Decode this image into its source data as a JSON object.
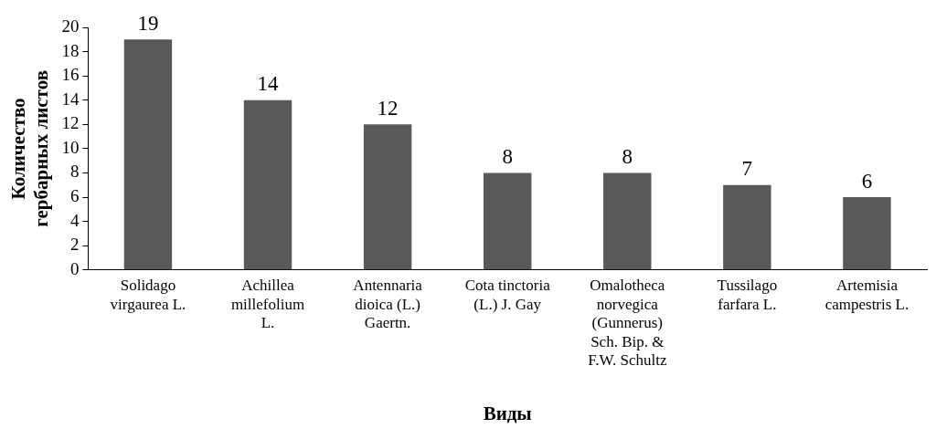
{
  "chart_data": {
    "type": "bar",
    "xlabel": "Виды",
    "ylabel": "Количество гербарных листов",
    "categories": [
      "Solidago virgaurea L.",
      "Achillea millefolium L.",
      "Antennaria dioica (L.) Gaertn.",
      "Cota tinctoria (L.) J. Gay",
      "Omalotheca norvegica (Gunnerus) Sch. Bip. & F.W. Schultz",
      "Tussilago farfara L.",
      "Artemisia campestris L."
    ],
    "values": [
      19,
      14,
      12,
      8,
      8,
      7,
      6
    ],
    "color": "#595959",
    "ylim": [
      0,
      20
    ],
    "yticks": [
      0,
      2,
      4,
      6,
      8,
      10,
      12,
      14,
      16,
      18,
      20
    ],
    "grid": false,
    "legend": false,
    "data_labels": true
  }
}
